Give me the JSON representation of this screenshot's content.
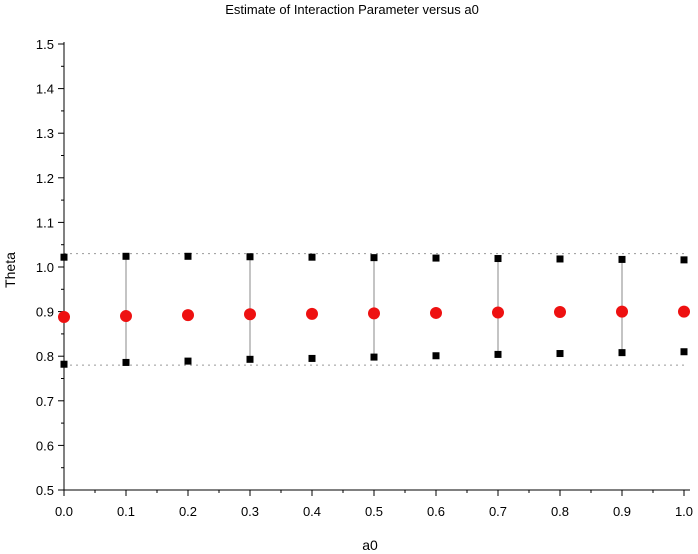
{
  "chart_data": {
    "type": "scatter",
    "title": "Estimate of Interaction Parameter versus a0",
    "xlabel": "a0",
    "ylabel": "Theta",
    "xlim": [
      0.0,
      1.0
    ],
    "ylim": [
      0.5,
      1.5
    ],
    "xticks": [
      "0.0",
      "0.1",
      "0.2",
      "0.3",
      "0.4",
      "0.5",
      "0.6",
      "0.7",
      "0.8",
      "0.9",
      "1.0"
    ],
    "yticks": [
      "0.5",
      "0.6",
      "0.7",
      "0.8",
      "0.9",
      "1.0",
      "1.1",
      "1.2",
      "1.3",
      "1.4",
      "1.5"
    ],
    "grid": false,
    "reference_lines_y": [
      0.78,
      1.03
    ],
    "x": [
      0.0,
      0.1,
      0.2,
      0.3,
      0.4,
      0.5,
      0.6,
      0.7,
      0.8,
      0.9,
      1.0
    ],
    "estimate": [
      0.888,
      0.89,
      0.892,
      0.894,
      0.895,
      0.896,
      0.897,
      0.898,
      0.899,
      0.9,
      0.9
    ],
    "upper": [
      1.022,
      1.024,
      1.024,
      1.023,
      1.022,
      1.021,
      1.02,
      1.019,
      1.018,
      1.017,
      1.016
    ],
    "lower": [
      0.782,
      0.786,
      0.789,
      0.793,
      0.795,
      0.798,
      0.801,
      0.804,
      0.806,
      0.808,
      0.81
    ],
    "colors": {
      "estimate": "#ee1111",
      "bounds": "#000000",
      "whisker": "#888888",
      "reference": "#999999"
    }
  }
}
